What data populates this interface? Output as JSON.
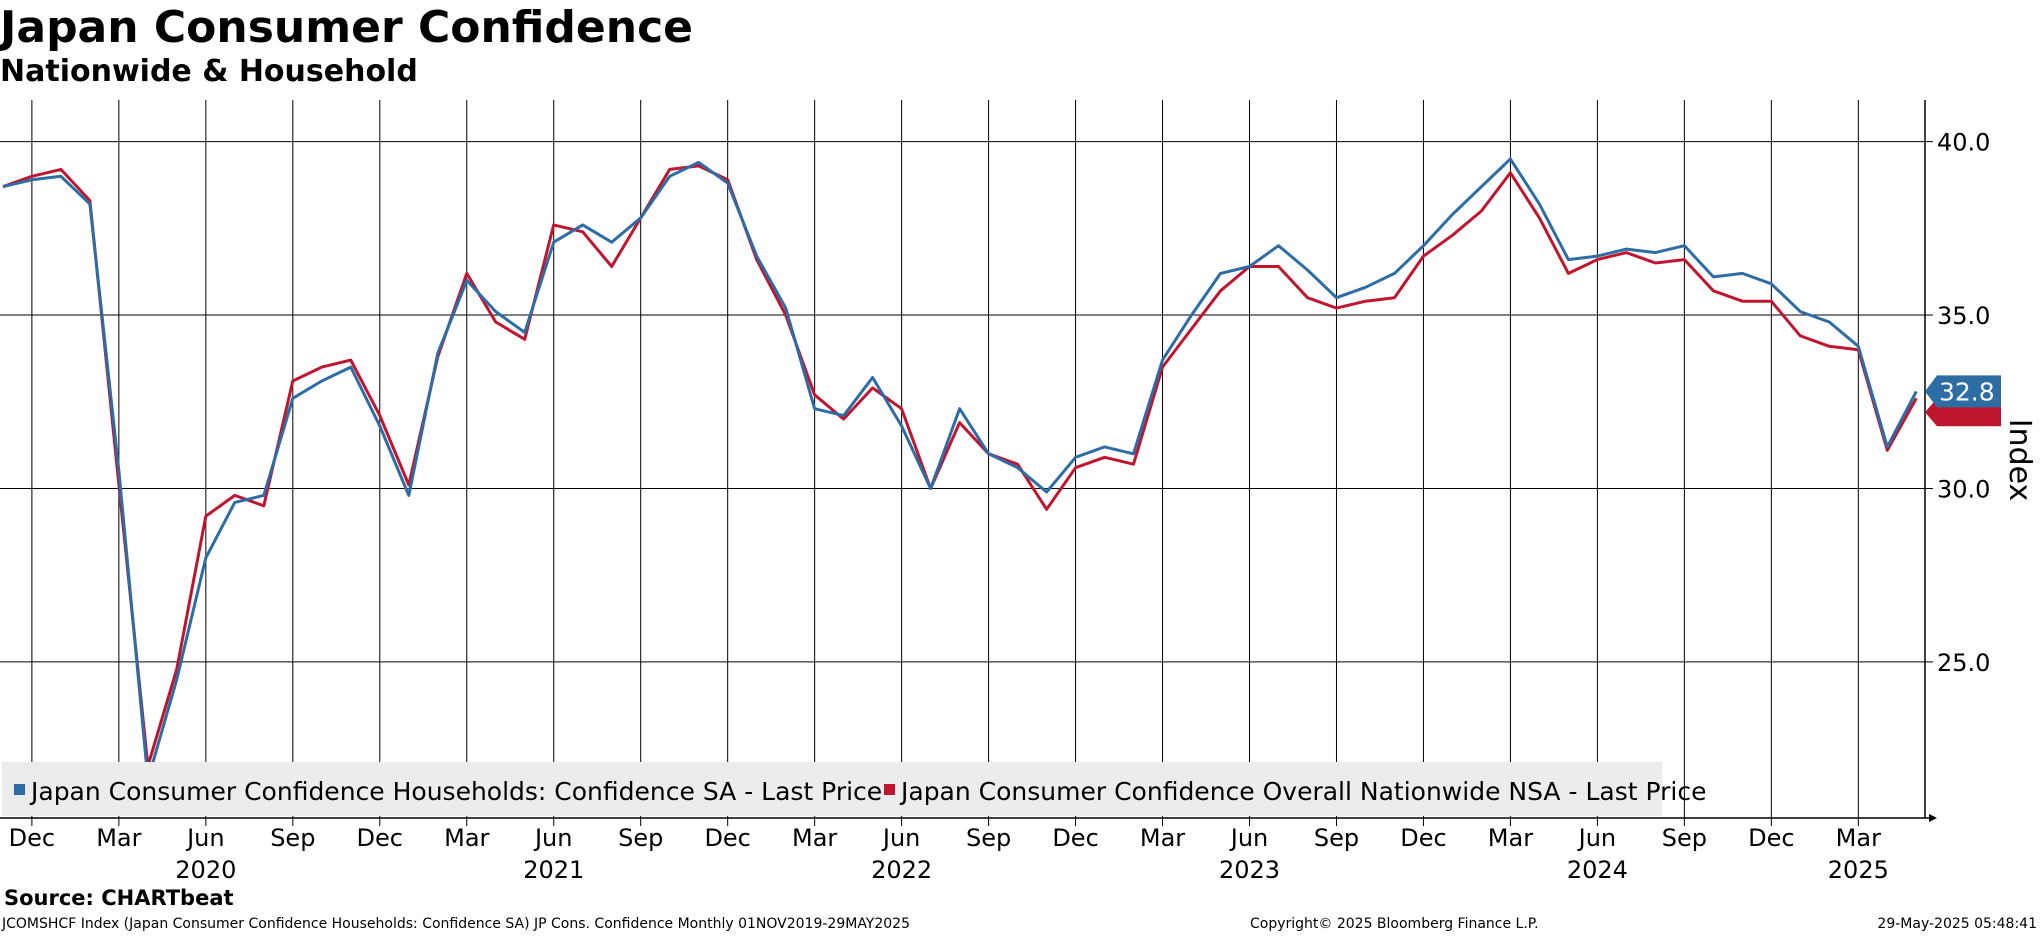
{
  "chart_data": {
    "type": "line",
    "title": "Japan Consumer Confidence",
    "subtitle": "Nationwide & Household",
    "ylabel": "Index",
    "ylim": [
      20.5,
      41.2
    ],
    "yticks": [
      "25.0",
      "30.0",
      "35.0",
      "40.0"
    ],
    "ytick_values": [
      25,
      30,
      35,
      40
    ],
    "x_range": [
      "2019-11",
      "2025-05"
    ],
    "month_ticks": [
      {
        "month": "2019-12",
        "label": "Dec"
      },
      {
        "month": "2020-03",
        "label": "Mar"
      },
      {
        "month": "2020-06",
        "label": "Jun"
      },
      {
        "month": "2020-09",
        "label": "Sep"
      },
      {
        "month": "2020-12",
        "label": "Dec"
      },
      {
        "month": "2021-03",
        "label": "Mar"
      },
      {
        "month": "2021-06",
        "label": "Jun"
      },
      {
        "month": "2021-09",
        "label": "Sep"
      },
      {
        "month": "2021-12",
        "label": "Dec"
      },
      {
        "month": "2022-03",
        "label": "Mar"
      },
      {
        "month": "2022-06",
        "label": "Jun"
      },
      {
        "month": "2022-09",
        "label": "Sep"
      },
      {
        "month": "2022-12",
        "label": "Dec"
      },
      {
        "month": "2023-03",
        "label": "Mar"
      },
      {
        "month": "2023-06",
        "label": "Jun"
      },
      {
        "month": "2023-09",
        "label": "Sep"
      },
      {
        "month": "2023-12",
        "label": "Dec"
      },
      {
        "month": "2024-03",
        "label": "Mar"
      },
      {
        "month": "2024-06",
        "label": "Jun"
      },
      {
        "month": "2024-09",
        "label": "Sep"
      },
      {
        "month": "2024-12",
        "label": "Dec"
      },
      {
        "month": "2025-03",
        "label": "Mar"
      }
    ],
    "year_labels": [
      {
        "month": "2020-06",
        "label": "2020"
      },
      {
        "month": "2021-06",
        "label": "2021"
      },
      {
        "month": "2022-06",
        "label": "2022"
      },
      {
        "month": "2023-06",
        "label": "2023"
      },
      {
        "month": "2024-06",
        "label": "2024"
      },
      {
        "month": "2025-03",
        "label": "2025"
      }
    ],
    "grid": true,
    "legend_position": "bottom-left",
    "last_value_label": "32.8",
    "x": [
      "2019-11",
      "2019-12",
      "2020-01",
      "2020-02",
      "2020-03",
      "2020-04",
      "2020-05",
      "2020-06",
      "2020-07",
      "2020-08",
      "2020-09",
      "2020-10",
      "2020-11",
      "2020-12",
      "2021-01",
      "2021-02",
      "2021-03",
      "2021-04",
      "2021-05",
      "2021-06",
      "2021-07",
      "2021-08",
      "2021-09",
      "2021-10",
      "2021-11",
      "2021-12",
      "2022-01",
      "2022-02",
      "2022-03",
      "2022-04",
      "2022-05",
      "2022-06",
      "2022-07",
      "2022-08",
      "2022-09",
      "2022-10",
      "2022-11",
      "2022-12",
      "2023-01",
      "2023-02",
      "2023-03",
      "2023-04",
      "2023-05",
      "2023-06",
      "2023-07",
      "2023-08",
      "2023-09",
      "2023-10",
      "2023-11",
      "2023-12",
      "2024-01",
      "2024-02",
      "2024-03",
      "2024-04",
      "2024-05",
      "2024-06",
      "2024-07",
      "2024-08",
      "2024-09",
      "2024-10",
      "2024-11",
      "2024-12",
      "2025-01",
      "2025-02",
      "2025-03",
      "2025-04",
      "2025-05"
    ],
    "series": [
      {
        "name": "Japan Consumer Confidence Households: Confidence SA - Last Price",
        "color": "#2e6da4",
        "values": [
          38.7,
          38.9,
          39.0,
          38.2,
          30.5,
          21.6,
          24.5,
          28.0,
          29.6,
          29.8,
          32.6,
          33.1,
          33.5,
          31.8,
          29.8,
          33.9,
          36.0,
          35.1,
          34.5,
          37.1,
          37.6,
          37.1,
          37.8,
          39.0,
          39.4,
          38.8,
          36.7,
          35.2,
          32.3,
          32.1,
          33.2,
          31.8,
          30.0,
          32.3,
          31.0,
          30.6,
          29.9,
          30.9,
          31.2,
          31.0,
          33.7,
          35.0,
          36.2,
          36.4,
          37.0,
          36.3,
          35.5,
          35.8,
          36.2,
          37.0,
          37.9,
          38.7,
          39.5,
          38.2,
          36.6,
          36.7,
          36.9,
          36.8,
          37.0,
          36.1,
          36.2,
          35.9,
          35.1,
          34.8,
          34.1,
          31.2,
          32.8
        ]
      },
      {
        "name": "Japan Consumer Confidence Overall Nationwide NSA - Last Price",
        "color": "#c0152f",
        "values": [
          38.7,
          39.0,
          39.2,
          38.3,
          30.1,
          22.0,
          24.8,
          29.2,
          29.8,
          29.5,
          33.1,
          33.5,
          33.7,
          32.1,
          30.1,
          33.8,
          36.2,
          34.8,
          34.3,
          37.6,
          37.4,
          36.4,
          37.8,
          39.2,
          39.3,
          38.9,
          36.6,
          35.0,
          32.7,
          32.0,
          32.9,
          32.3,
          30.0,
          31.9,
          31.0,
          30.7,
          29.4,
          30.6,
          30.9,
          30.7,
          33.5,
          34.6,
          35.7,
          36.4,
          36.4,
          35.5,
          35.2,
          35.4,
          35.5,
          36.7,
          37.3,
          38.0,
          39.1,
          37.8,
          36.2,
          36.6,
          36.8,
          36.5,
          36.6,
          35.7,
          35.4,
          35.4,
          34.4,
          34.1,
          34.0,
          31.1,
          32.6
        ]
      }
    ]
  },
  "source": "Source: CHARTbeat",
  "footer": {
    "left": "JCOMSHCF Index (Japan Consumer Confidence Households: Confidence SA) JP Cons. Confidence  Monthly 01NOV2019-29MAY2025",
    "middle": "Copyright© 2025 Bloomberg Finance L.P.",
    "right": "29-May-2025 05:48:41"
  }
}
